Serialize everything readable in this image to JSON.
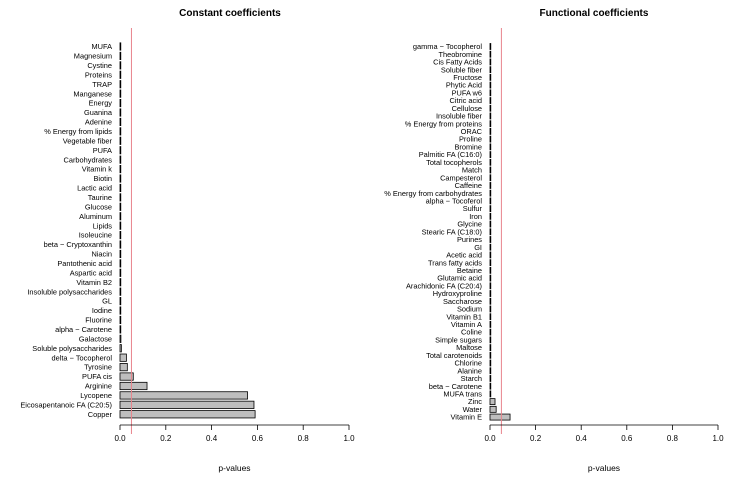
{
  "chart_data": [
    {
      "type": "bar",
      "orientation": "horizontal",
      "title": "Constant coefficients",
      "xlabel": "p-values",
      "ylabel": "",
      "xlim": [
        0,
        1
      ],
      "xticks": [
        "0.0",
        "0.2",
        "0.4",
        "0.6",
        "0.8",
        "1.0"
      ],
      "threshold": 0.05,
      "categories": [
        "MUFA",
        "Magnesium",
        "Cystine",
        "Proteins",
        "TRAP",
        "Manganese",
        "Energy",
        "Guanina",
        "Adenine",
        "% Energy from lipids",
        "Vegetable fiber",
        "PUFA",
        "Carbohydrates",
        "Vitamin k",
        "Biotin",
        "Lactic acid",
        "Taurine",
        "Glucose",
        "Aluminum",
        "Lipids",
        "Isoleucine",
        "beta − Cryptoxanthin",
        "Niacin",
        "Pantothenic acid",
        "Aspartic acid",
        "Vitamin B2",
        "Insoluble polysaccharides",
        "GL",
        "Iodine",
        "Fluorine",
        "alpha − Carotene",
        "Galactose",
        "Soluble polysaccharides",
        "delta − Tocopherol",
        "Tyrosine",
        "PUFA cis",
        "Arginine",
        "Lycopene",
        "Eicosapentanoic FA (C20:5)",
        "Copper"
      ],
      "values": [
        0.001,
        0.001,
        0.001,
        0.001,
        0.001,
        0.001,
        0.001,
        0.001,
        0.001,
        0.001,
        0.001,
        0.001,
        0.001,
        0.001,
        0.001,
        0.001,
        0.001,
        0.001,
        0.001,
        0.001,
        0.001,
        0.001,
        0.001,
        0.001,
        0.001,
        0.001,
        0.001,
        0.001,
        0.001,
        0.002,
        0.003,
        0.004,
        0.006,
        0.028,
        0.032,
        0.058,
        0.118,
        0.557,
        0.585,
        0.59
      ]
    },
    {
      "type": "bar",
      "orientation": "horizontal",
      "title": "Functional coefficients",
      "xlabel": "p-values",
      "ylabel": "",
      "xlim": [
        0,
        1
      ],
      "xticks": [
        "0.0",
        "0.2",
        "0.4",
        "0.6",
        "0.8",
        "1.0"
      ],
      "threshold": 0.05,
      "categories": [
        "gamma − Tocopherol",
        "Theobromine",
        "Cis Fatty Acids",
        "Soluble fiber",
        "Fructose",
        "Phytic Acid",
        "PUFA w6",
        "Citric acid",
        "Cellulose",
        "Insoluble fiber",
        "% Energy from proteins",
        "ORAC",
        "Proline",
        "Bromine",
        "Palmitic FA (C16:0)",
        "Total tocopherols",
        "Match",
        "Campesterol",
        "Caffeine",
        "% Energy from carbohydrates",
        "alpha − Tocoferol",
        "Sulfur",
        "Iron",
        "Glycine",
        "Stearic FA (C18:0)",
        "Purines",
        "GI",
        "Acetic acid",
        "Trans fatty acids",
        "Betaine",
        "Glutamic acid",
        "Arachidonic FA (C20:4)",
        "Hydroxyproline",
        "Saccharose",
        "Sodium",
        "Vitamin B1",
        "Vitamin A",
        "Coline",
        "Simple sugars",
        "Maltose",
        "Total carotenoids",
        "Chlorine",
        "Alanine",
        "Starch",
        "beta − Carotene",
        "MUFA trans",
        "Zinc",
        "Water",
        "Vitamin E"
      ],
      "values": [
        0.001,
        0.001,
        0.001,
        0.001,
        0.001,
        0.001,
        0.001,
        0.001,
        0.001,
        0.001,
        0.001,
        0.001,
        0.001,
        0.001,
        0.001,
        0.001,
        0.001,
        0.001,
        0.001,
        0.001,
        0.001,
        0.001,
        0.001,
        0.001,
        0.001,
        0.001,
        0.001,
        0.001,
        0.001,
        0.001,
        0.001,
        0.001,
        0.001,
        0.001,
        0.001,
        0.001,
        0.001,
        0.001,
        0.001,
        0.001,
        0.001,
        0.001,
        0.001,
        0.001,
        0.001,
        0.002,
        0.022,
        0.027,
        0.088
      ]
    }
  ],
  "colors": {
    "bar_fill": "#bebebe",
    "bar_stroke": "#000000",
    "threshold_line": "#e8848c",
    "axis": "#000000"
  }
}
